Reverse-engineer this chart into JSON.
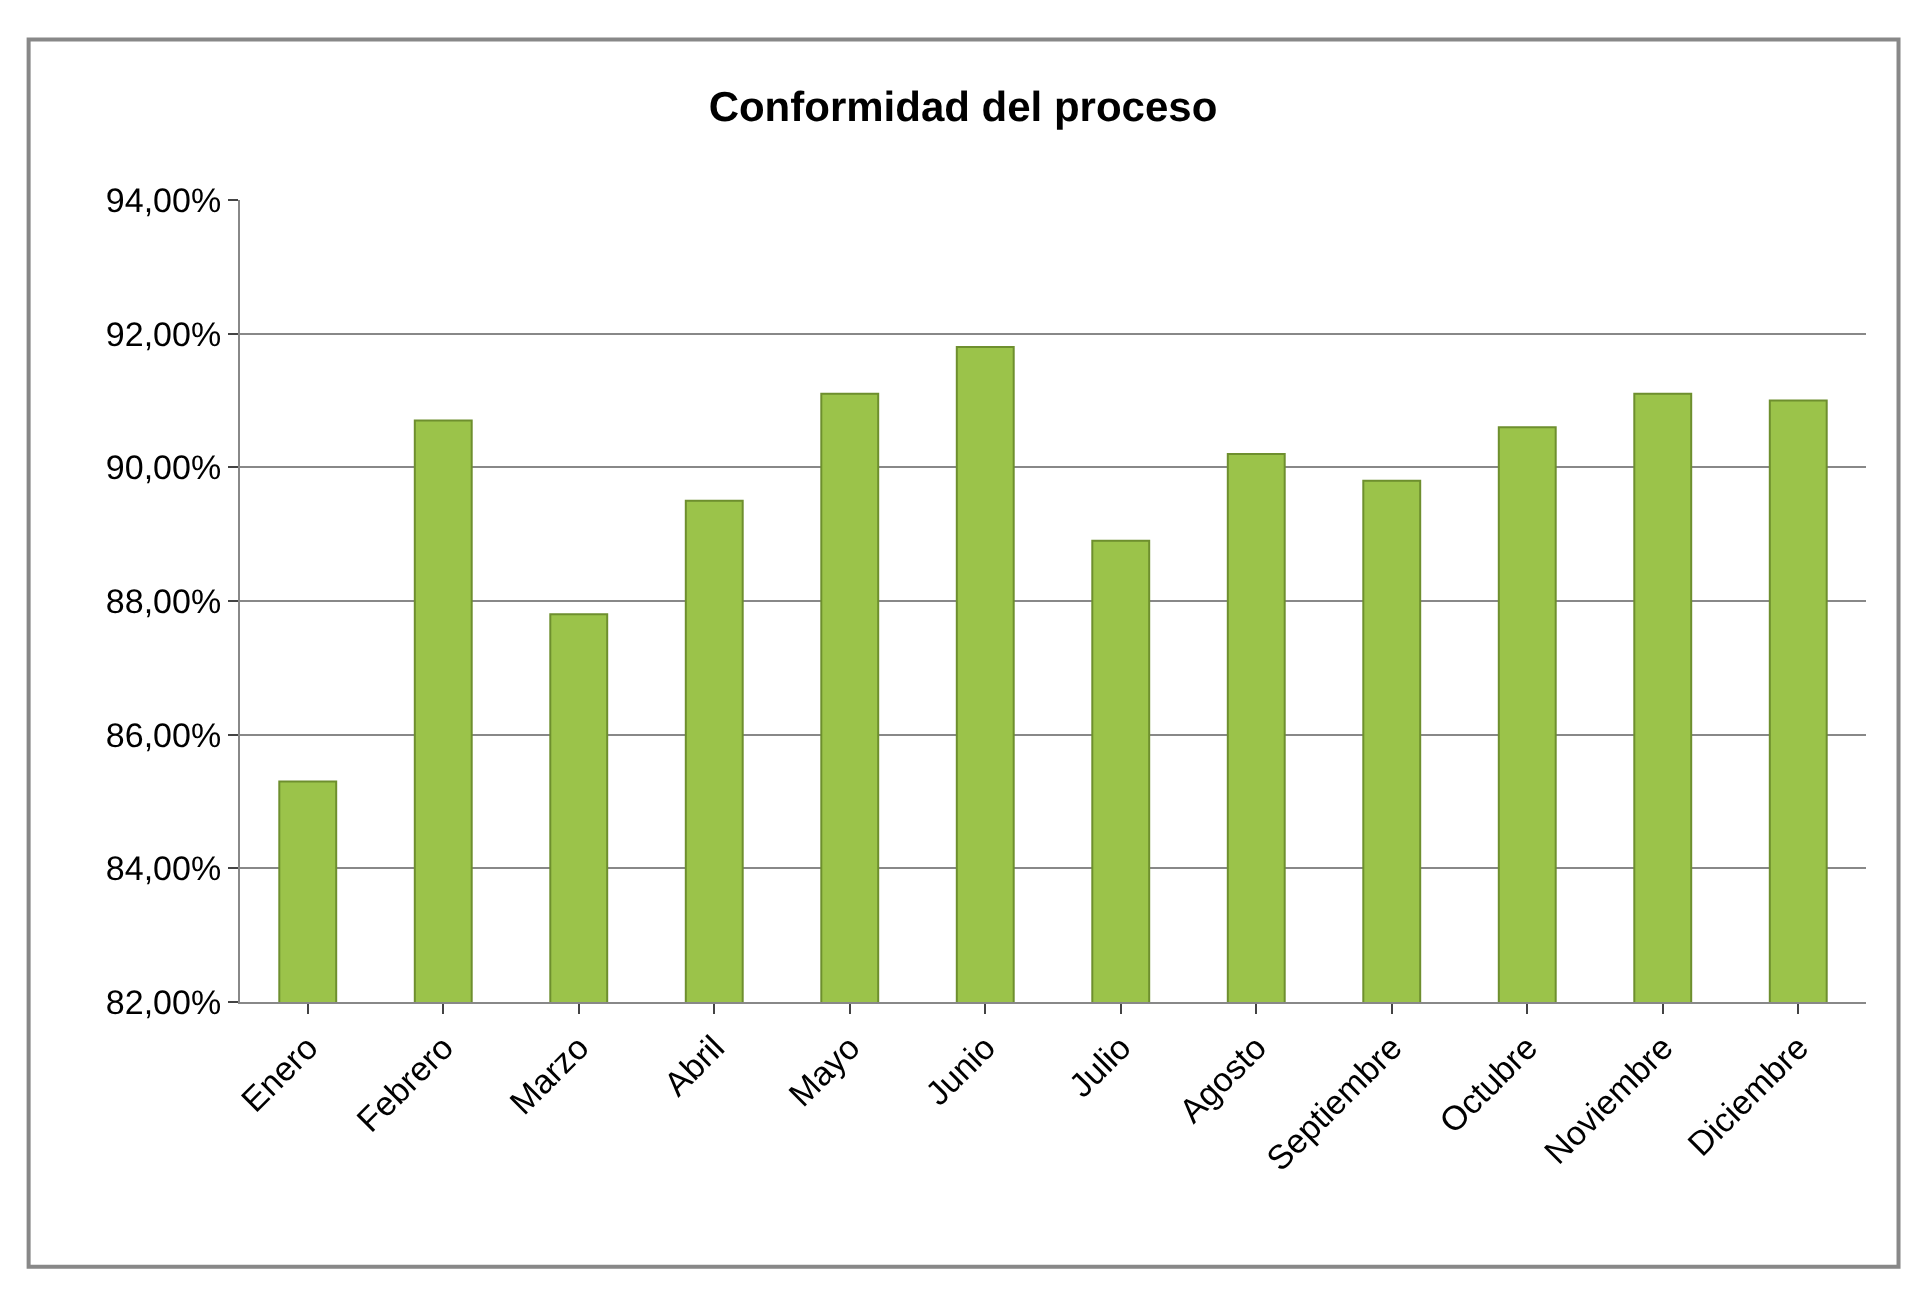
{
  "chart_data": {
    "type": "bar",
    "title": "Conformidad del proceso",
    "categories": [
      "Enero",
      "Febrero",
      "Marzo",
      "Abril",
      "Mayo",
      "Junio",
      "Julio",
      "Agosto",
      "Septiembre",
      "Octubre",
      "Noviembre",
      "Diciembre"
    ],
    "values": [
      85.3,
      90.7,
      87.8,
      89.5,
      91.1,
      91.8,
      88.9,
      90.2,
      89.8,
      90.6,
      91.1,
      91.0
    ],
    "color": "#9bc34a",
    "ylim": [
      82,
      94
    ],
    "yticks": [
      {
        "value": 82,
        "label": "82,00%"
      },
      {
        "value": 84,
        "label": "84,00%"
      },
      {
        "value": 86,
        "label": "86,00%"
      },
      {
        "value": 88,
        "label": "88,00%"
      },
      {
        "value": 90,
        "label": "90,00%"
      },
      {
        "value": 92,
        "label": "92,00%"
      },
      {
        "value": 94,
        "label": "94,00%"
      }
    ],
    "grid": "y"
  }
}
